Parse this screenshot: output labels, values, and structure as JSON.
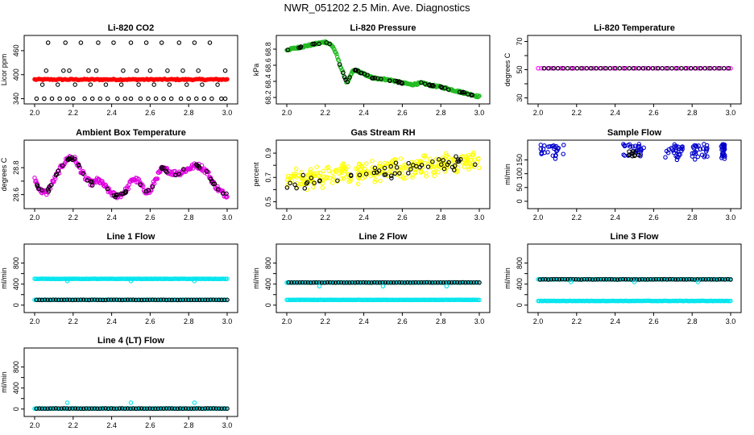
{
  "page_title": "NWR_051202  2.5 Min. Ave. Diagnostics",
  "colors": {
    "co2": "#ff0000",
    "pressure": "#22bb22",
    "temperature": "#ff00ff",
    "ambient": "#e000e0",
    "rh": "#ffff00",
    "sample_flow": "#0000cc",
    "line_flow": "#00e5ee",
    "reference": "#000000"
  },
  "chart_data": [
    {
      "id": "co2",
      "type": "scatter",
      "title": "Li-820 CO2",
      "xlabel": "",
      "ylabel": "Licor ppm",
      "xlim": [
        2.0,
        3.0
      ],
      "ylim": [
        335,
        490
      ],
      "xticks": [
        "2.0",
        "2.2",
        "2.4",
        "2.6",
        "2.8",
        "3.0"
      ],
      "yticks": [
        340,
        400,
        460
      ],
      "ytick_labels": [
        "340",
        "400",
        "460"
      ],
      "series": [
        {
          "name": "reference",
          "color": "#000000",
          "x": [
            2.01,
            2.05,
            2.09,
            2.13,
            2.17,
            2.2,
            2.26,
            2.3,
            2.34,
            2.38,
            2.43,
            2.47,
            2.5,
            2.55,
            2.59,
            2.63,
            2.67,
            2.71,
            2.76,
            2.8,
            2.84,
            2.88,
            2.92,
            2.97,
            2.99,
            2.07,
            2.16,
            2.24,
            2.33,
            2.41,
            2.5,
            2.58,
            2.66,
            2.75,
            2.83,
            2.91,
            2.04,
            2.12,
            2.21,
            2.29,
            2.37,
            2.45,
            2.54,
            2.62,
            2.7,
            2.79,
            2.87,
            2.95
          ],
          "y": [
            340,
            340,
            340,
            340,
            340,
            340,
            340,
            340,
            340,
            340,
            340,
            340,
            340,
            340,
            340,
            340,
            340,
            340,
            340,
            340,
            340,
            340,
            340,
            340,
            340,
            480,
            480,
            480,
            480,
            480,
            480,
            480,
            480,
            480,
            480,
            480,
            375,
            375,
            375,
            375,
            375,
            375,
            375,
            375,
            375,
            375,
            375,
            375
          ]
        },
        {
          "name": "co2_high",
          "color": "#000000",
          "x": [
            2.06,
            2.15,
            2.18,
            2.28,
            2.32,
            2.46,
            2.53,
            2.6,
            2.69,
            2.77,
            2.85,
            2.99
          ],
          "y": [
            410,
            410,
            410,
            410,
            410,
            410,
            410,
            410,
            410,
            410,
            410,
            410
          ]
        },
        {
          "name": "sample",
          "color": "#ff0000",
          "value": 388,
          "n": 140
        }
      ]
    },
    {
      "id": "pressure",
      "type": "scatter",
      "title": "Li-820 Pressure",
      "xlabel": "",
      "ylabel": "kPa",
      "xlim": [
        2.0,
        3.0
      ],
      "ylim": [
        68.16,
        68.93
      ],
      "xticks": [
        "2.0",
        "2.2",
        "2.4",
        "2.6",
        "2.8",
        "3.0"
      ],
      "yticks": [
        68.2,
        68.4,
        68.6,
        68.8
      ],
      "ytick_labels": [
        "68.2",
        "68.4",
        "68.6",
        "68.8"
      ],
      "series": [
        {
          "name": "pressure",
          "color": "#22bb22",
          "x": [
            2.0,
            2.04,
            2.08,
            2.12,
            2.16,
            2.2,
            2.22,
            2.24,
            2.26,
            2.28,
            2.3,
            2.31,
            2.32,
            2.34,
            2.36,
            2.4,
            2.45,
            2.5,
            2.55,
            2.6,
            2.65,
            2.7,
            2.75,
            2.8,
            2.85,
            2.9,
            2.95,
            3.0
          ],
          "y": [
            68.79,
            68.81,
            68.83,
            68.85,
            68.87,
            68.89,
            68.87,
            68.83,
            68.72,
            68.58,
            68.46,
            68.39,
            68.4,
            68.52,
            68.54,
            68.49,
            68.44,
            68.43,
            68.41,
            68.38,
            68.36,
            68.38,
            68.35,
            68.33,
            68.3,
            68.27,
            68.24,
            68.21
          ]
        }
      ]
    },
    {
      "id": "temperature",
      "type": "scatter",
      "title": "Li-820 Temperature",
      "xlabel": "",
      "ylabel": "degrees C",
      "xlim": [
        2.0,
        3.0
      ],
      "ylim": [
        28,
        72
      ],
      "xticks": [
        "2.0",
        "2.2",
        "2.4",
        "2.6",
        "2.8",
        "3.0"
      ],
      "yticks": [
        30,
        40,
        50,
        60,
        70
      ],
      "ytick_labels": [
        "30",
        "",
        "50",
        "",
        "70"
      ],
      "series": [
        {
          "name": "temperature",
          "color": "#ff00ff",
          "value": 51,
          "n": 60
        }
      ]
    },
    {
      "id": "ambient",
      "type": "scatter",
      "title": "Ambient Box Temperature",
      "xlabel": "",
      "ylabel": "degrees C",
      "xlim": [
        2.0,
        3.0
      ],
      "ylim": [
        28.52,
        28.98
      ],
      "xticks": [
        "2.0",
        "2.2",
        "2.4",
        "2.6",
        "2.8",
        "3.0"
      ],
      "yticks": [
        28.6,
        28.7,
        28.8
      ],
      "ytick_labels": [
        "28.6",
        "",
        "28.8"
      ],
      "series": [
        {
          "name": "ambient",
          "color": "#e000e0",
          "x": [
            2.0,
            2.03,
            2.06,
            2.09,
            2.12,
            2.15,
            2.18,
            2.21,
            2.24,
            2.27,
            2.3,
            2.33,
            2.36,
            2.39,
            2.42,
            2.45,
            2.48,
            2.51,
            2.54,
            2.57,
            2.6,
            2.63,
            2.66,
            2.69,
            2.72,
            2.75,
            2.78,
            2.81,
            2.84,
            2.87,
            2.9,
            2.93,
            2.96,
            2.99
          ],
          "y": [
            28.72,
            28.63,
            28.61,
            28.68,
            28.76,
            28.83,
            28.88,
            28.86,
            28.78,
            28.71,
            28.68,
            28.71,
            28.67,
            28.62,
            28.59,
            28.6,
            28.64,
            28.72,
            28.7,
            28.63,
            28.62,
            28.72,
            28.79,
            28.78,
            28.76,
            28.76,
            28.78,
            28.8,
            28.82,
            28.8,
            28.76,
            28.68,
            28.63,
            28.6
          ]
        }
      ]
    },
    {
      "id": "rh",
      "type": "scatter",
      "title": "Gas Stream RH",
      "xlabel": "",
      "ylabel": "percent",
      "xlim": [
        2.0,
        3.0
      ],
      "ylim": [
        0.47,
        0.98
      ],
      "xticks": [
        "2.0",
        "2.2",
        "2.4",
        "2.6",
        "2.8",
        "3.0"
      ],
      "yticks": [
        0.5,
        0.6,
        0.7,
        0.8,
        0.9
      ],
      "ytick_labels": [
        "0.5",
        "",
        "0.7",
        "",
        "0.9"
      ],
      "series": [
        {
          "name": "rh",
          "color": "#ffff00",
          "trend": [
            0.68,
            0.84
          ],
          "spread": 0.07,
          "n": 300
        },
        {
          "name": "reference",
          "color": "#000000",
          "trend": [
            0.65,
            0.84
          ],
          "spread": 0.05,
          "n": 55
        }
      ]
    },
    {
      "id": "sample_flow",
      "type": "scatter",
      "title": "Sample Flow",
      "xlabel": "",
      "ylabel": "ml/min",
      "xlim": [
        2.0,
        3.0
      ],
      "ylim": [
        -15,
        210
      ],
      "xticks": [
        "2.0",
        "2.2",
        "2.4",
        "2.6",
        "2.8",
        "3.0"
      ],
      "yticks": [
        0,
        50,
        100,
        150
      ],
      "ytick_labels": [
        "0",
        "50",
        "100",
        "150"
      ],
      "series": [
        {
          "name": "sample_flow",
          "color": "#0000cc",
          "clusters": [
            [
              2.0,
              2.15
            ],
            [
              2.44,
              2.55
            ],
            [
              2.66,
              2.75
            ],
            [
              2.8,
              2.88
            ],
            [
              2.95,
              2.97
            ]
          ],
          "ymin": 150,
          "ymax": 208
        }
      ]
    },
    {
      "id": "line1",
      "type": "scatter",
      "title": "Line 1 Flow",
      "xlabel": "",
      "ylabel": "ml/min",
      "xlim": [
        2.0,
        3.0
      ],
      "ylim": [
        -80,
        1100
      ],
      "xticks": [
        "2.0",
        "2.2",
        "2.4",
        "2.6",
        "2.8",
        "3.0"
      ],
      "yticks": [
        0,
        200,
        400,
        600,
        800
      ],
      "ytick_labels": [
        "0",
        "",
        "400",
        "",
        "800"
      ],
      "series": [
        {
          "name": "flow_high",
          "color": "#00e5ee",
          "value": 500
        },
        {
          "name": "flow_low",
          "color": "#00e5ee",
          "value": 100
        },
        {
          "name": "reference",
          "color": "#000000",
          "value": 100
        },
        {
          "name": "dips",
          "color": "#00e5ee",
          "x": [
            2.17,
            2.5,
            2.83
          ],
          "y": [
            460,
            460,
            460
          ]
        }
      ]
    },
    {
      "id": "line2",
      "type": "scatter",
      "title": "Line 2 Flow",
      "xlabel": "",
      "ylabel": "ml/min",
      "xlim": [
        2.0,
        3.0
      ],
      "ylim": [
        -80,
        1100
      ],
      "xticks": [
        "2.0",
        "2.2",
        "2.4",
        "2.6",
        "2.8",
        "3.0"
      ],
      "yticks": [
        0,
        200,
        400,
        600,
        800
      ],
      "ytick_labels": [
        "0",
        "",
        "400",
        "",
        "800"
      ],
      "series": [
        {
          "name": "flow_high",
          "color": "#00e5ee",
          "value": 430
        },
        {
          "name": "flow_low",
          "color": "#00e5ee",
          "value": 100
        },
        {
          "name": "reference",
          "color": "#000000",
          "value": 430
        },
        {
          "name": "dips",
          "color": "#00e5ee",
          "x": [
            2.17,
            2.5,
            2.83
          ],
          "y": [
            360,
            360,
            360
          ]
        }
      ]
    },
    {
      "id": "line3",
      "type": "scatter",
      "title": "Line 3 Flow",
      "xlabel": "",
      "ylabel": "ml/min",
      "xlim": [
        2.0,
        3.0
      ],
      "ylim": [
        -80,
        1100
      ],
      "xticks": [
        "2.0",
        "2.2",
        "2.4",
        "2.6",
        "2.8",
        "3.0"
      ],
      "yticks": [
        0,
        200,
        400,
        600,
        800
      ],
      "ytick_labels": [
        "0",
        "",
        "400",
        "",
        "800"
      ],
      "series": [
        {
          "name": "flow_high",
          "color": "#00e5ee",
          "value": 490
        },
        {
          "name": "flow_low",
          "color": "#00e5ee",
          "value": 80
        },
        {
          "name": "reference",
          "color": "#000000",
          "value": 490
        },
        {
          "name": "dips",
          "color": "#00e5ee",
          "x": [
            2.17,
            2.5,
            2.83
          ],
          "y": [
            440,
            440,
            440
          ]
        }
      ]
    },
    {
      "id": "line4",
      "type": "scatter",
      "title": "Line 4 (LT) Flow",
      "xlabel": "",
      "ylabel": "ml/min",
      "xlim": [
        2.0,
        3.0
      ],
      "ylim": [
        -80,
        1100
      ],
      "xticks": [
        "2.0",
        "2.2",
        "2.4",
        "2.6",
        "2.8",
        "3.0"
      ],
      "yticks": [
        0,
        200,
        400,
        600,
        800
      ],
      "ytick_labels": [
        "0",
        "",
        "400",
        "",
        "800"
      ],
      "series": [
        {
          "name": "flow_low",
          "color": "#00e5ee",
          "value": 10
        },
        {
          "name": "reference",
          "color": "#000000",
          "value": 10
        },
        {
          "name": "spikes",
          "color": "#00e5ee",
          "x": [
            2.17,
            2.5,
            2.83
          ],
          "y": [
            120,
            120,
            120
          ]
        }
      ]
    }
  ]
}
